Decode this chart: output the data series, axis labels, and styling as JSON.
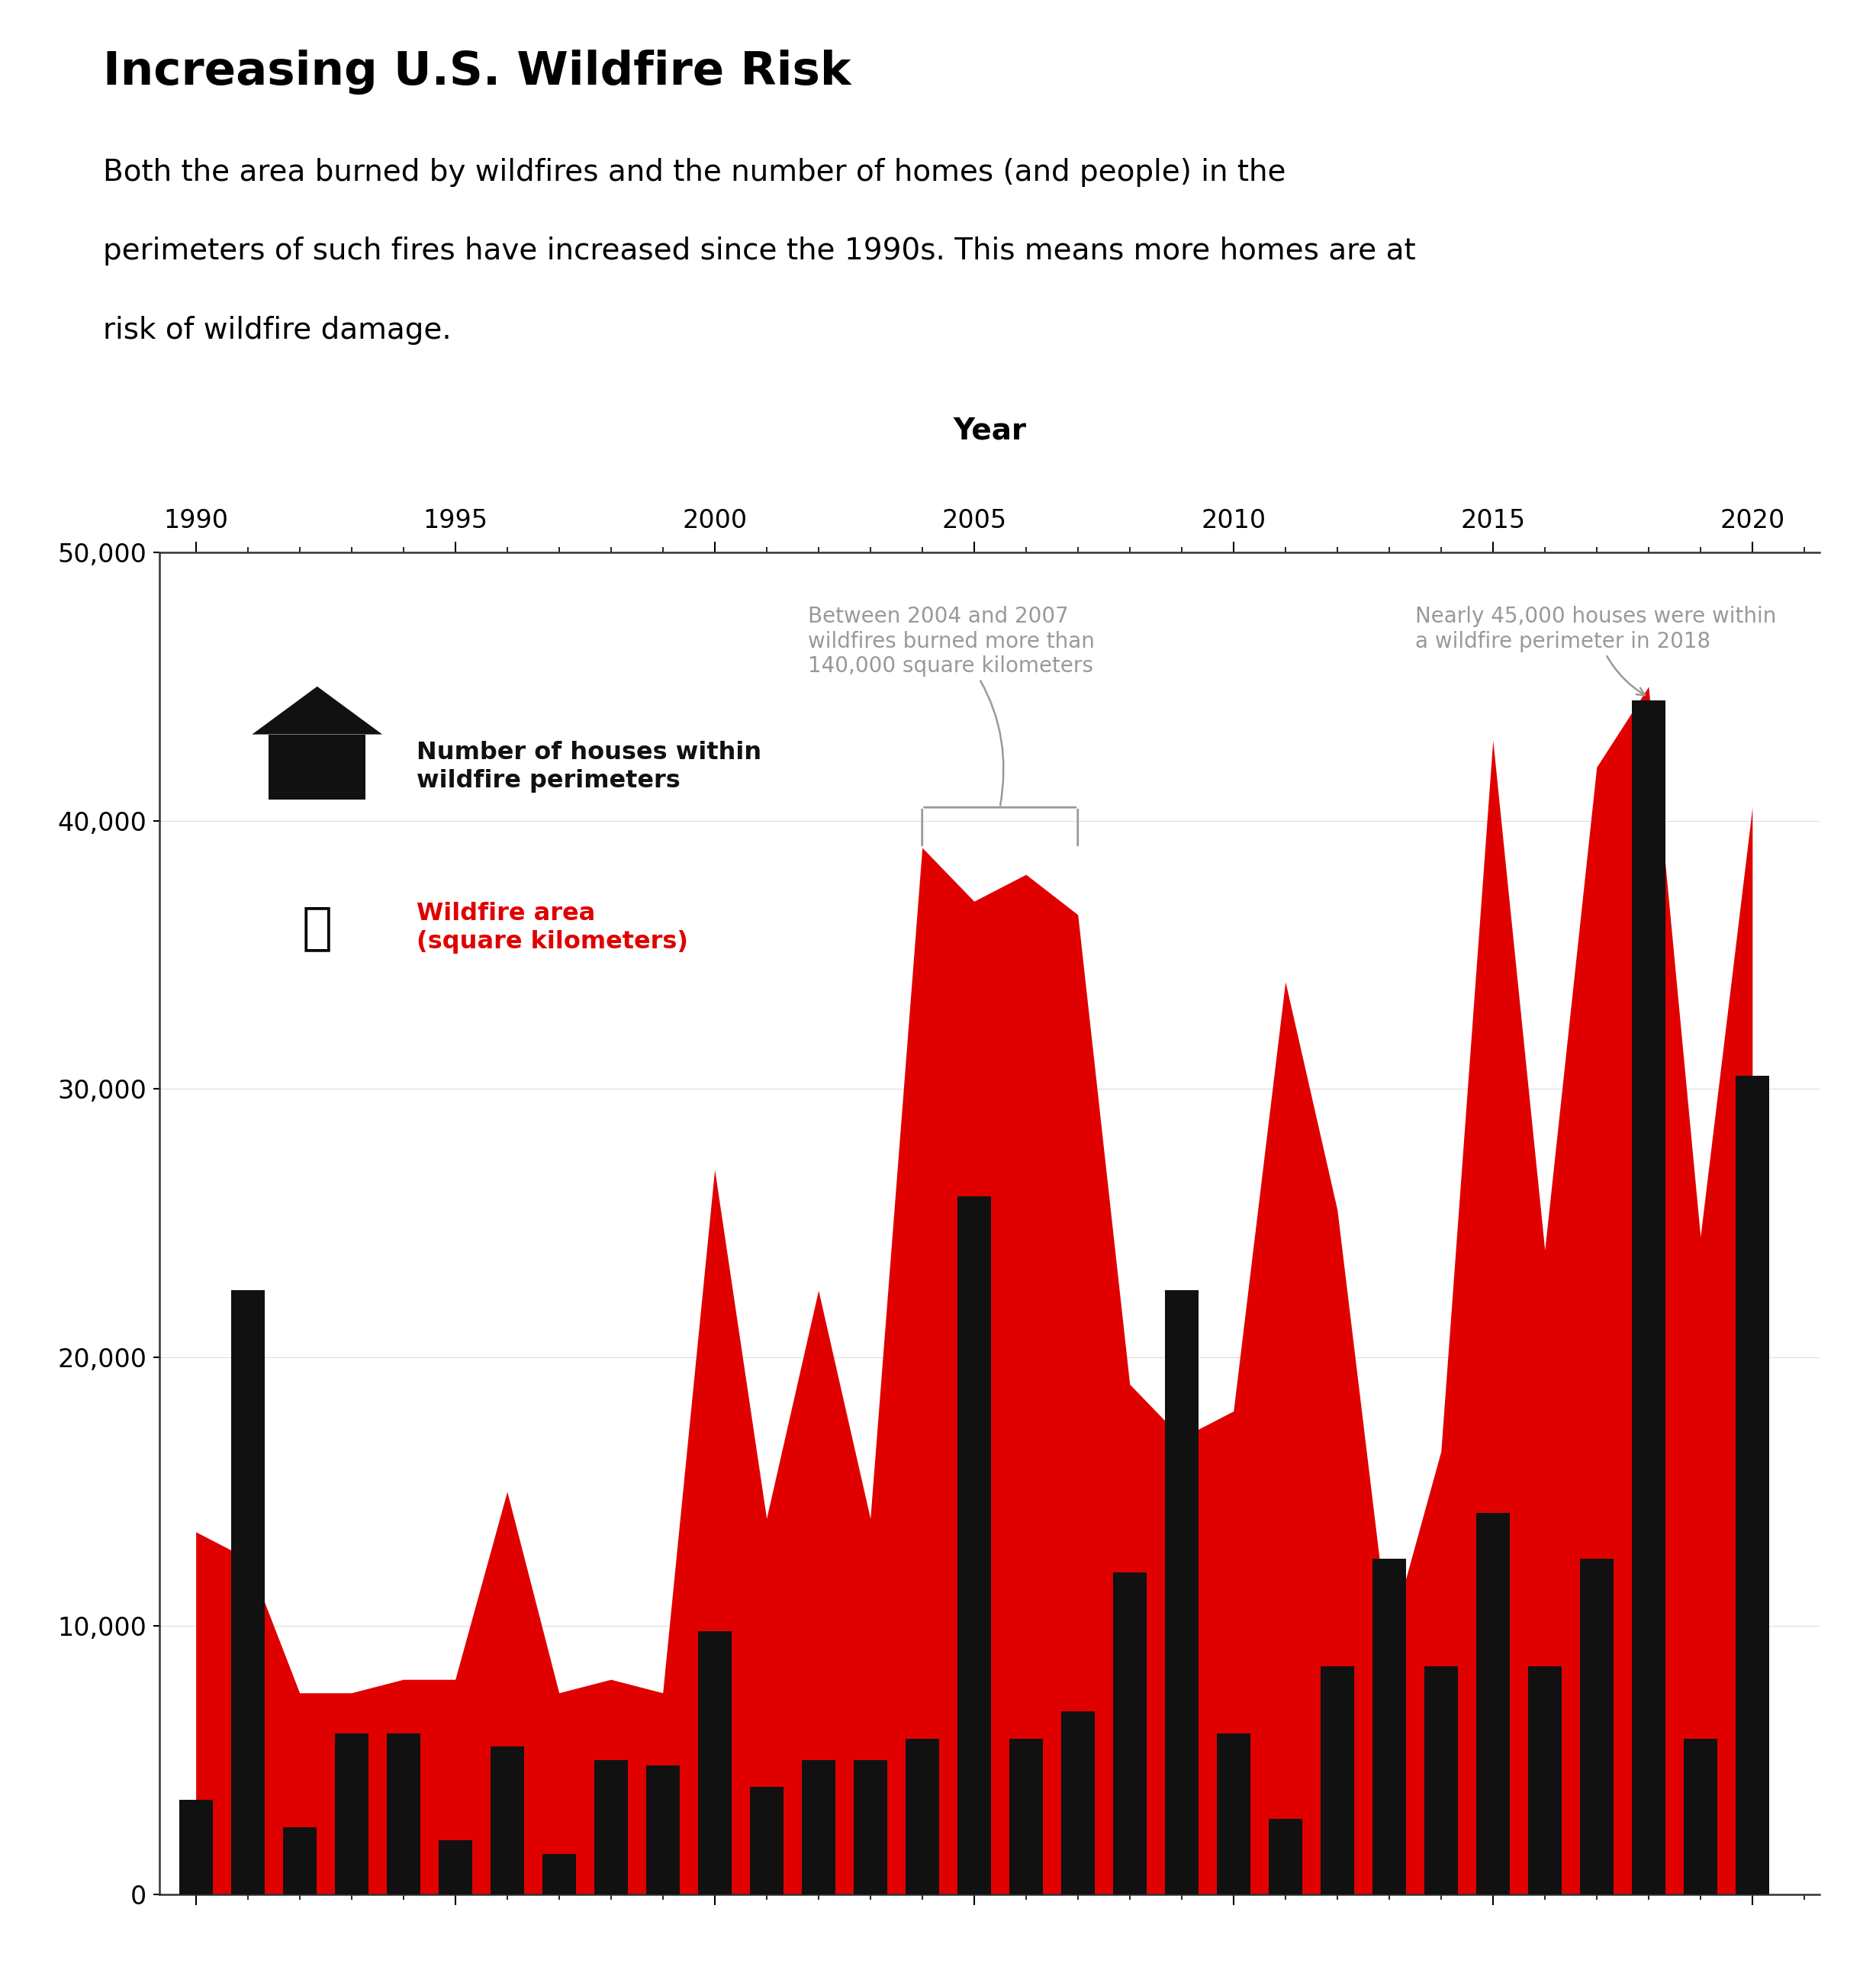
{
  "years": [
    1990,
    1991,
    1992,
    1993,
    1994,
    1995,
    1996,
    1997,
    1998,
    1999,
    2000,
    2001,
    2002,
    2003,
    2004,
    2005,
    2006,
    2007,
    2008,
    2009,
    2010,
    2011,
    2012,
    2013,
    2014,
    2015,
    2016,
    2017,
    2018,
    2019,
    2020
  ],
  "wildfire_area": [
    13500,
    12500,
    7500,
    7500,
    8000,
    8000,
    15000,
    7500,
    8000,
    7500,
    27000,
    14000,
    22500,
    14000,
    39000,
    37000,
    38000,
    36500,
    19000,
    17000,
    18000,
    34000,
    25500,
    9500,
    16500,
    43000,
    24000,
    42000,
    45000,
    24500,
    40500
  ],
  "houses": [
    3500,
    22500,
    2500,
    6000,
    6000,
    2000,
    5500,
    1500,
    5000,
    4800,
    9800,
    4000,
    5000,
    5000,
    5800,
    26000,
    5800,
    6800,
    12000,
    22500,
    6000,
    2800,
    8500,
    12500,
    8500,
    14200,
    8500,
    12500,
    44500,
    5800,
    30500
  ],
  "title": "Increasing U.S. Wildfire Risk",
  "subtitle_line1": "Both the area burned by wildfires and the number of homes (and people) in the",
  "subtitle_line2": "perimeters of such fires have increased since the 1990s. This means more homes are at",
  "subtitle_line3": "risk of wildfire damage.",
  "xlabel": "Year",
  "bar_color": "#111111",
  "area_color": "#e00000",
  "background_color": "#ffffff",
  "ann_color": "#999999",
  "ylim": [
    0,
    50000
  ],
  "yticks": [
    0,
    10000,
    20000,
    30000,
    40000,
    50000
  ],
  "xticks": [
    1990,
    1995,
    2000,
    2005,
    2010,
    2015,
    2020
  ],
  "annotation1_text": "Between 2004 and 2007\nwildfires burned more than\n140,000 square kilometers",
  "annotation2_text": "Nearly 45,000 houses were within\na wildfire perimeter in 2018"
}
